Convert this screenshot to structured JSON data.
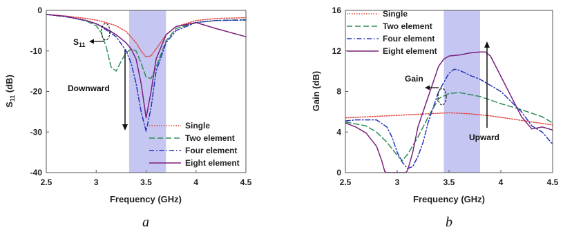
{
  "chart_data": [
    {
      "type": "line",
      "panel_label": "a",
      "xlabel": "Frequency (GHz)",
      "ylabel_main": "S",
      "ylabel_sub": "11",
      "ylabel_unit": " (dB)",
      "xlim": [
        2.5,
        4.5
      ],
      "ylim": [
        -40,
        0
      ],
      "xticks": [
        "2.5",
        "3",
        "3.5",
        "4",
        "4.5"
      ],
      "yticks": [
        "-40",
        "-30",
        "-20",
        "-10",
        "0"
      ],
      "x_tick_values": [
        2.5,
        3,
        3.5,
        4,
        4.5
      ],
      "y_tick_values": [
        -40,
        -30,
        -20,
        -10,
        0
      ],
      "band": [
        3.33,
        3.7
      ],
      "legend_position": "bottom-right",
      "annotations": {
        "s_main": "S",
        "s_sub": "11",
        "downward": "Downward"
      },
      "series": [
        {
          "name": "Single",
          "style": "dotted",
          "color": "#e0443c",
          "x": [
            2.5,
            2.7,
            2.9,
            3.0,
            3.1,
            3.2,
            3.3,
            3.4,
            3.45,
            3.5,
            3.55,
            3.6,
            3.7,
            3.8,
            4.0,
            4.2,
            4.5
          ],
          "y": [
            -1.0,
            -1.4,
            -2.0,
            -2.4,
            -3.0,
            -3.8,
            -5.2,
            -8.0,
            -10.0,
            -11.5,
            -11.2,
            -9.5,
            -6.0,
            -4.0,
            -2.5,
            -2.0,
            -1.8
          ]
        },
        {
          "name": "Two element",
          "style": "dashed",
          "color": "#2e8b57",
          "x": [
            2.5,
            2.7,
            2.9,
            3.0,
            3.05,
            3.1,
            3.15,
            3.2,
            3.25,
            3.3,
            3.35,
            3.4,
            3.45,
            3.5,
            3.55,
            3.6,
            3.7,
            3.8,
            4.0,
            4.2,
            4.5
          ],
          "y": [
            -1.0,
            -1.5,
            -2.6,
            -3.8,
            -5.5,
            -9.0,
            -14.0,
            -15.0,
            -12.5,
            -10.5,
            -9.5,
            -10.0,
            -13.0,
            -16.5,
            -16.8,
            -14.0,
            -7.5,
            -4.5,
            -3.0,
            -2.5,
            -2.3
          ]
        },
        {
          "name": "Four element",
          "style": "dashdot",
          "color": "#2233bb",
          "x": [
            2.5,
            2.7,
            2.9,
            3.0,
            3.1,
            3.2,
            3.3,
            3.35,
            3.4,
            3.45,
            3.5,
            3.55,
            3.6,
            3.7,
            3.8,
            4.0,
            4.2,
            4.5
          ],
          "y": [
            -1.0,
            -1.6,
            -2.5,
            -3.3,
            -4.8,
            -6.5,
            -10.0,
            -13.0,
            -18.0,
            -25.0,
            -29.8,
            -24.0,
            -15.0,
            -8.0,
            -5.0,
            -3.0,
            -2.5,
            -2.4
          ]
        },
        {
          "name": "Eight element",
          "style": "solid",
          "color": "#7a1f7a",
          "x": [
            2.5,
            2.7,
            2.9,
            3.0,
            3.1,
            3.2,
            3.3,
            3.35,
            3.4,
            3.45,
            3.5,
            3.55,
            3.6,
            3.7,
            3.8,
            4.0,
            4.2,
            4.5
          ],
          "y": [
            -1.0,
            -1.5,
            -2.5,
            -3.3,
            -4.5,
            -6.0,
            -8.0,
            -9.5,
            -12.0,
            -18.0,
            -26.5,
            -20.0,
            -12.0,
            -6.0,
            -4.0,
            -3.0,
            -4.5,
            -6.5
          ]
        }
      ]
    },
    {
      "type": "line",
      "panel_label": "b",
      "xlabel": "Frequency (GHz)",
      "ylabel": "Gain (dB)",
      "xlim": [
        2.5,
        4.5
      ],
      "ylim": [
        0,
        16
      ],
      "xticks": [
        "2.5",
        "3",
        "3.5",
        "4",
        "4.5"
      ],
      "yticks": [
        "0",
        "4",
        "8",
        "12",
        "16"
      ],
      "x_tick_values": [
        2.5,
        3,
        3.5,
        4,
        4.5
      ],
      "y_tick_values": [
        0,
        4,
        8,
        12,
        16
      ],
      "band": [
        3.45,
        3.8
      ],
      "legend_position": "top-left",
      "annotations": {
        "gain": "Gain",
        "upward": "Upward"
      },
      "series": [
        {
          "name": "Single",
          "style": "dotted",
          "color": "#e0443c",
          "x": [
            2.5,
            2.7,
            2.9,
            3.1,
            3.3,
            3.5,
            3.7,
            3.9,
            4.1,
            4.3,
            4.5
          ],
          "y": [
            5.4,
            5.5,
            5.6,
            5.7,
            5.8,
            5.9,
            5.8,
            5.6,
            5.3,
            5.0,
            4.7
          ]
        },
        {
          "name": "Two element",
          "style": "dashed",
          "color": "#2e8b57",
          "x": [
            2.5,
            2.7,
            2.8,
            2.9,
            3.0,
            3.05,
            3.1,
            3.2,
            3.3,
            3.4,
            3.5,
            3.6,
            3.8,
            4.0,
            4.2,
            4.4,
            4.5
          ],
          "y": [
            5.0,
            4.6,
            4.0,
            3.0,
            1.7,
            1.2,
            1.8,
            3.5,
            5.5,
            7.3,
            7.8,
            7.9,
            7.5,
            6.8,
            6.2,
            5.5,
            4.9
          ]
        },
        {
          "name": "Four element",
          "style": "dashdot",
          "color": "#2233bb",
          "x": [
            2.5,
            2.6,
            2.8,
            2.9,
            2.95,
            3.0,
            3.05,
            3.1,
            3.15,
            3.2,
            3.25,
            3.3,
            3.4,
            3.5,
            3.55,
            3.6,
            3.7,
            3.8,
            4.0,
            4.2,
            4.3,
            4.4,
            4.5
          ],
          "y": [
            5.1,
            5.2,
            5.2,
            4.5,
            3.5,
            2.0,
            1.0,
            0.4,
            0.6,
            1.6,
            3.0,
            5.0,
            8.0,
            9.8,
            10.2,
            10.1,
            9.6,
            9.2,
            8.0,
            6.0,
            4.6,
            4.0,
            2.8
          ]
        },
        {
          "name": "Eight element",
          "style": "solid",
          "color": "#7a1f7a",
          "x": [
            2.5,
            2.6,
            2.7,
            2.8,
            2.85,
            2.88,
            2.9,
            3.0,
            3.08,
            3.1,
            3.15,
            3.2,
            3.3,
            3.4,
            3.45,
            3.5,
            3.6,
            3.7,
            3.8,
            3.85,
            3.9,
            4.0,
            4.1,
            4.2,
            4.3,
            4.4,
            4.5
          ],
          "y": [
            4.9,
            4.5,
            3.9,
            2.6,
            1.2,
            0.1,
            0.0,
            0.0,
            0.0,
            0.2,
            2.0,
            4.5,
            7.5,
            10.5,
            11.2,
            11.5,
            11.6,
            11.8,
            11.9,
            11.9,
            11.5,
            9.5,
            7.5,
            5.5,
            4.3,
            4.5,
            4.2
          ]
        }
      ]
    }
  ]
}
